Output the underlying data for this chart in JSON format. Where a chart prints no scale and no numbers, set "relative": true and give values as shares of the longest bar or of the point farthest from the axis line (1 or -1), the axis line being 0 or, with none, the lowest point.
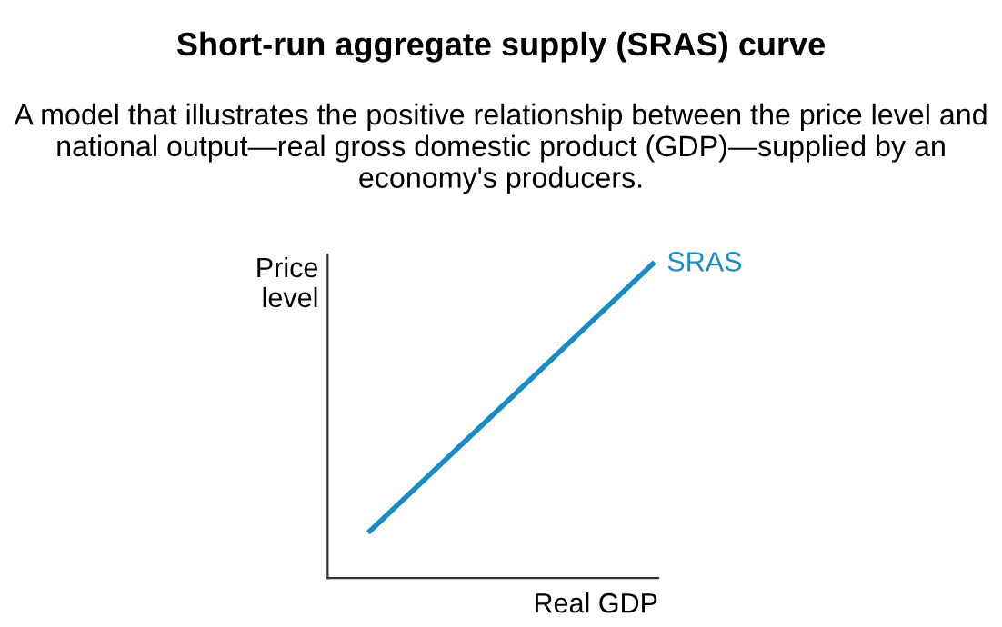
{
  "chart_data": {
    "type": "line",
    "title": "Short-run aggregate supply (SRAS) curve",
    "subtitle": "A model that illustrates the positive relationship between the price level and national output—real gross domestic product (GDP)—supplied by an economy's producers.",
    "xlabel": "Real GDP",
    "ylabel": "Price\nlevel",
    "relative": true,
    "categories": [
      null,
      null
    ],
    "series": [
      {
        "name": "SRAS",
        "color": "#1a8bc4",
        "values": [
          0.15,
          1
        ]
      }
    ],
    "tick_labels": false,
    "legend": false
  }
}
